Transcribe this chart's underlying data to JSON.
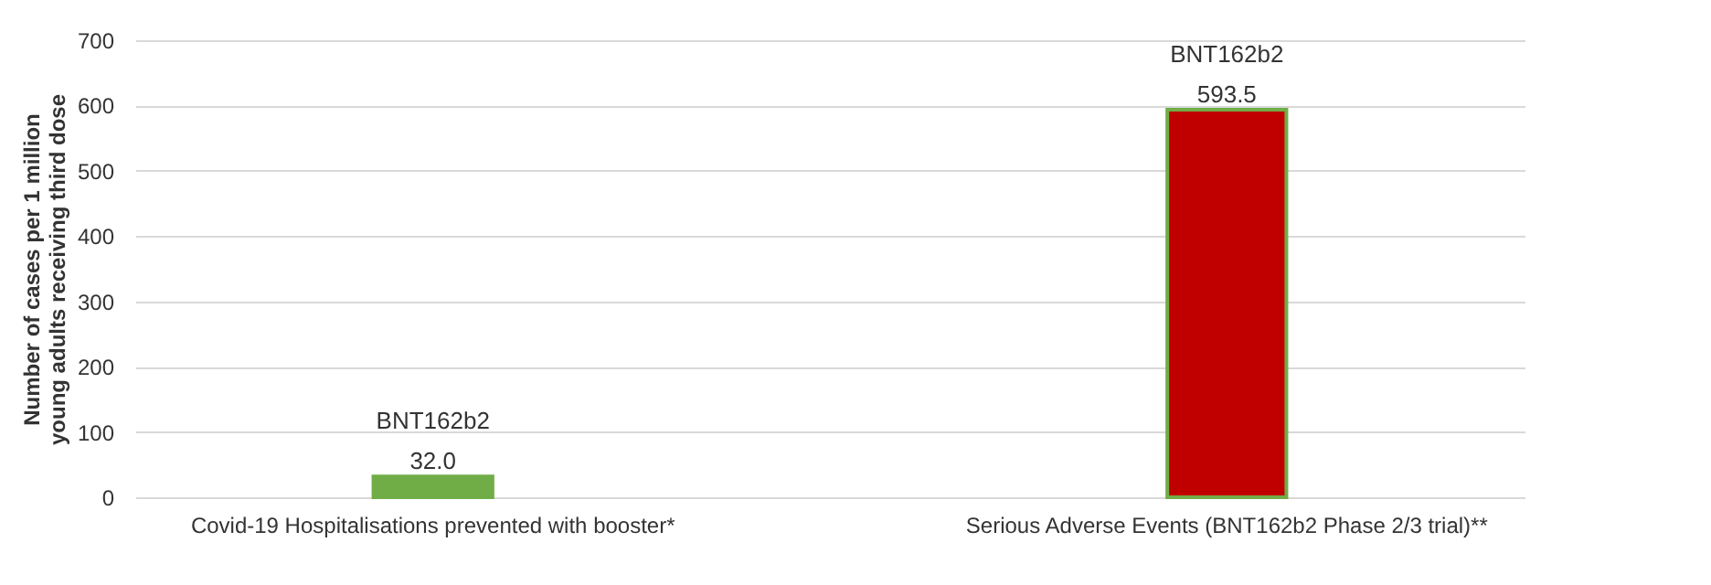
{
  "chart_data": {
    "type": "bar",
    "categories": [
      "Covid-19 Hospitalisations prevented with booster*",
      "Serious Adverse Events (BNT162b2 Phase 2/3 trial)**"
    ],
    "values": [
      32.0,
      593.5
    ],
    "colors": [
      "#70ad47",
      "#c00000"
    ],
    "value_labels": [
      "32.0",
      "593.5"
    ],
    "annotations": [
      {
        "text": "BNT162b2",
        "x": "Covid-19 Hospitalisations prevented with booster*",
        "y": 32.0
      },
      {
        "text": "BNT162b2",
        "x": "Serious Adverse Events (BNT162b2 Phase 2/3 trial)**",
        "y": 593.5
      }
    ],
    "ylabel": "Number of cases per 1 million\nyoung adults receiving third dose",
    "ylim": [
      0,
      700
    ],
    "yticks": [
      0,
      100,
      200,
      300,
      400,
      500,
      600,
      700
    ],
    "grid": "y"
  }
}
